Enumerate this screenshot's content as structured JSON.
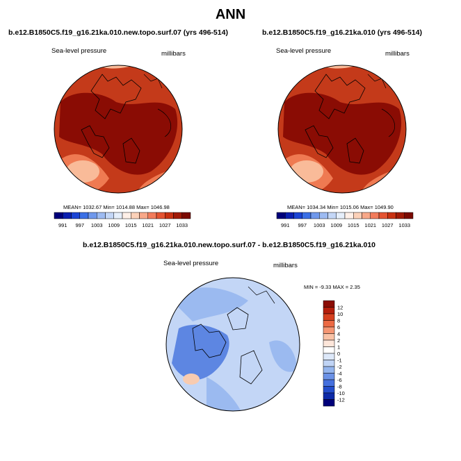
{
  "page_title": "ANN",
  "panels": [
    {
      "case_title": "b.e12.B1850C5.f19_g16.21ka.010.new.topo.surf.07 (yrs 496-514)",
      "variable": "Sea-level pressure",
      "units": "millibars",
      "stats": "MEAN= 1032.67   Min= 1014.88   Max= 1046.98",
      "colorbar": {
        "labels": [
          "991",
          "997",
          "1003",
          "1009",
          "1015",
          "1021",
          "1027",
          "1033"
        ],
        "colors": [
          "#00007a",
          "#0a1fb0",
          "#1b44d4",
          "#3a6fe6",
          "#6f98ec",
          "#9dbbf2",
          "#c4d7f7",
          "#e6effb",
          "#fff0e8",
          "#fcd1b9",
          "#f8a889",
          "#f27c5c",
          "#e45432",
          "#c83212",
          "#a01a07",
          "#7a0a02"
        ]
      }
    },
    {
      "case_title": "b.e12.B1850C5.f19_g16.21ka.010 (yrs 496-514)",
      "variable": "Sea-level pressure",
      "units": "millibars",
      "stats": "MEAN= 1034.34   Min= 1015.06   Max= 1049.90",
      "colorbar": {
        "labels": [
          "991",
          "997",
          "1003",
          "1009",
          "1015",
          "1021",
          "1027",
          "1033"
        ],
        "colors": [
          "#00007a",
          "#0a1fb0",
          "#1b44d4",
          "#3a6fe6",
          "#6f98ec",
          "#9dbbf2",
          "#c4d7f7",
          "#e6effb",
          "#fff0e8",
          "#fcd1b9",
          "#f8a889",
          "#f27c5c",
          "#e45432",
          "#c83212",
          "#a01a07",
          "#7a0a02"
        ]
      }
    }
  ],
  "diff_panel": {
    "case_title": "b.e12.B1850C5.f19_g16.21ka.010.new.topo.surf.07 - b.e12.B1850C5.f19_g16.21ka.010",
    "variable": "Sea-level pressure",
    "units": "millibars",
    "stats": "MIN =  -9.33 MAX =   2.35",
    "colorbar": {
      "labels": [
        "12",
        "10",
        "8",
        "6",
        "4",
        "2",
        "1",
        "0",
        "-1",
        "-2",
        "-4",
        "-6",
        "-8",
        "-10",
        "-12"
      ],
      "colors": [
        "#8b0c04",
        "#b51e0c",
        "#d6401f",
        "#ec6a44",
        "#f59673",
        "#f9c2a6",
        "#fde6da",
        "#ffffff",
        "#dde8f9",
        "#c0d4f5",
        "#94b5ee",
        "#6b92e7",
        "#4570de",
        "#234dcc",
        "#0d2aa8",
        "#00007a"
      ]
    }
  },
  "colors": {
    "high_core": "#8a0c04",
    "high_mid": "#c43a1a",
    "high_ring": "#ef7a52",
    "high_light": "#f9bb99",
    "diff_base": "#c3d6f6",
    "diff_mid": "#9bbaf0",
    "diff_deep": "#5d86e2",
    "diff_pos": "#f8cbb0"
  }
}
